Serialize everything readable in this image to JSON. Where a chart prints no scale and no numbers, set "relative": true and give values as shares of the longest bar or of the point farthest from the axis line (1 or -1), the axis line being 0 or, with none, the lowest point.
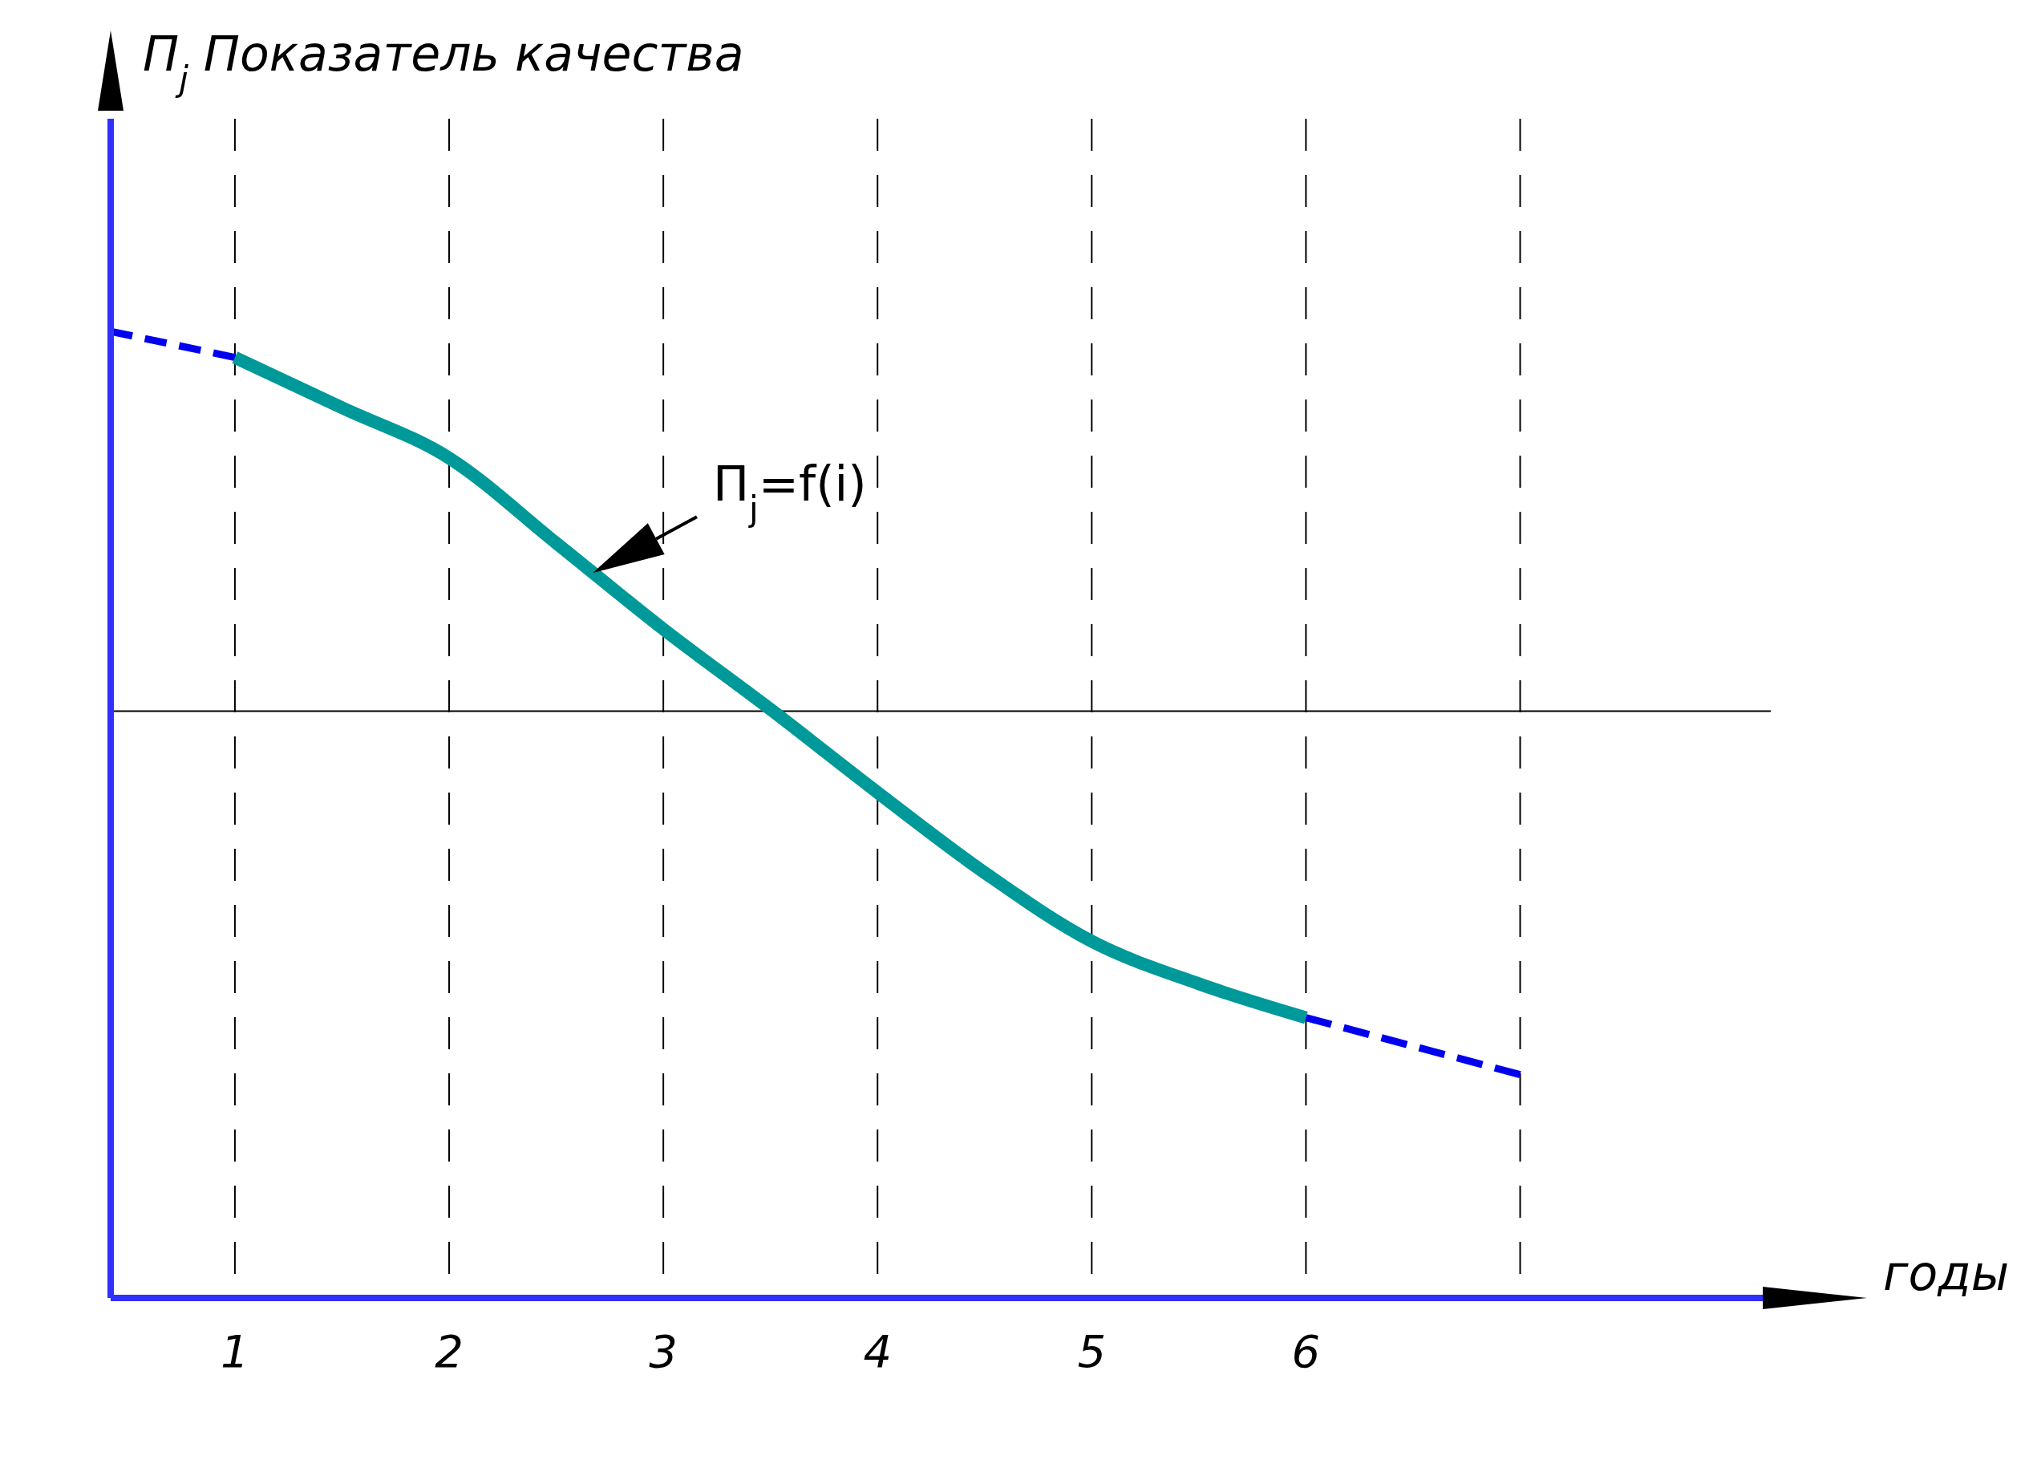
{
  "chart_data": {
    "type": "line",
    "relative": true,
    "ylabel": "П$_{j}$ Показатель качества",
    "xlabel": "годы",
    "xlim": [
      0.42,
      8.17
    ],
    "xticks": [
      1,
      2,
      3,
      4,
      5,
      6,
      {
        "value": 7,
        "label": null
      }
    ],
    "grid": "x",
    "series": [
      {
        "color": "#0000ee",
        "line_style": "dashed",
        "x": [
          0.42,
          1
        ],
        "values": [
          1,
          0.973
        ]
      },
      {
        "color": "#009999",
        "line_style": "solid",
        "x": [
          1,
          1.5,
          2,
          2.5,
          3,
          3.5,
          4,
          4.5,
          5,
          5.5,
          6
        ],
        "values": [
          0.973,
          0.921,
          0.869,
          0.781,
          0.692,
          0.609,
          0.523,
          0.44,
          0.369,
          0.325,
          0.29
        ]
      },
      {
        "color": "#0000ee",
        "line_style": "dashed",
        "x": [
          6,
          7
        ],
        "values": [
          0.29,
          0.231
        ]
      }
    ],
    "ref_lines": [
      {
        "axis": "y",
        "value": 0.607,
        "color": "#000000"
      }
    ],
    "annotations": [
      {
        "text": "П$_{j}$=f(i)",
        "x": 2.67,
        "y": 0.75
      }
    ]
  }
}
